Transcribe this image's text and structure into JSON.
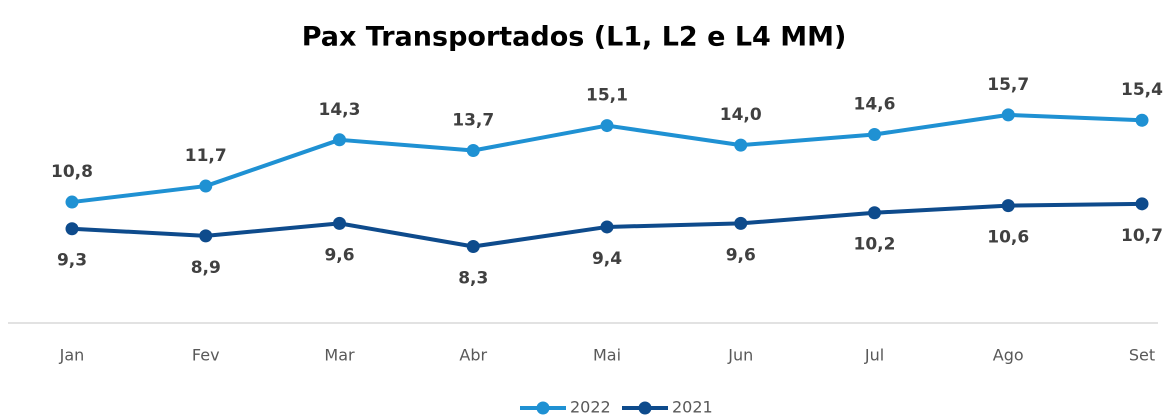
{
  "chart_data": {
    "type": "line",
    "title": "Pax Transportados (L1, L2 e L4 MM)",
    "categories": [
      "Jan",
      "Fev",
      "Mar",
      "Abr",
      "Mai",
      "Jun",
      "Jul",
      "Ago",
      "Set"
    ],
    "series": [
      {
        "name": "2022",
        "color": "#1f91d3",
        "values": [
          10.8,
          11.7,
          14.3,
          13.7,
          15.1,
          14.0,
          14.6,
          15.7,
          15.4
        ],
        "value_labels": [
          "10,8",
          "11,7",
          "14,3",
          "13,7",
          "15,1",
          "14,0",
          "14,6",
          "15,7",
          "15,4"
        ]
      },
      {
        "name": "2021",
        "color": "#0e4b8c",
        "values": [
          9.3,
          8.9,
          9.6,
          8.3,
          9.4,
          9.6,
          10.2,
          10.6,
          10.7
        ],
        "value_labels": [
          "9,3",
          "8,9",
          "9,6",
          "8,3",
          "9,4",
          "9,6",
          "10,2",
          "10,6",
          "10,7"
        ]
      }
    ],
    "ylim": [
      4,
      18
    ],
    "legend": "bottom"
  }
}
